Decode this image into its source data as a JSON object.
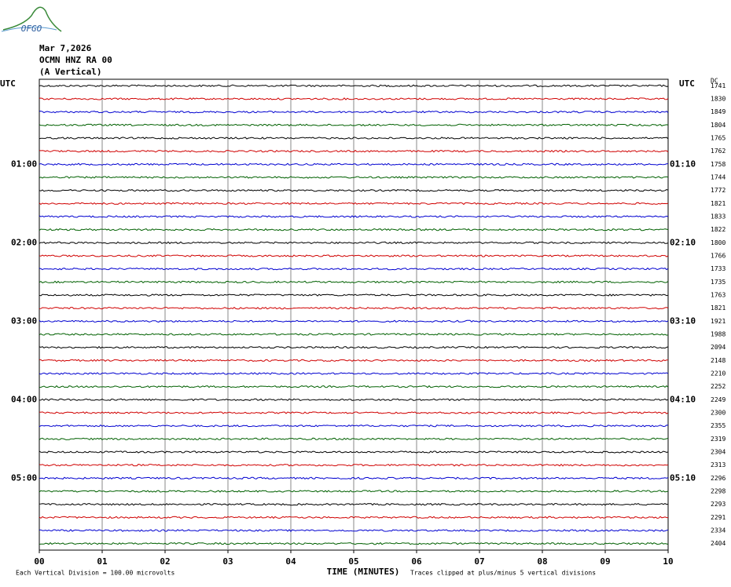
{
  "logo": "OFGO",
  "header": {
    "date": "Mar 7,2026",
    "station": "OCMN HNZ RA 00",
    "component": "(A Vertical)"
  },
  "left_axis": {
    "title": "UTC",
    "labels": [
      "01:00",
      "02:00",
      "03:00",
      "04:00",
      "05:00"
    ]
  },
  "right_axis": {
    "title": "UTC",
    "labels": [
      "01:10",
      "02:10",
      "03:10",
      "04:10",
      "05:10"
    ]
  },
  "dc": {
    "title": "DC",
    "values": [
      1741,
      1830,
      1849,
      1804,
      1765,
      1762,
      1758,
      1744,
      1772,
      1821,
      1833,
      1822,
      1800,
      1766,
      1733,
      1735,
      1763,
      1821,
      1921,
      1988,
      2094,
      2148,
      2210,
      2252,
      2249,
      2300,
      2355,
      2319,
      2304,
      2313,
      2296,
      2298,
      2293,
      2291,
      2334,
      2404
    ]
  },
  "trace_colors": [
    "#000000",
    "#d00000",
    "#0000d0",
    "#006000"
  ],
  "x_axis": {
    "ticks": [
      "00",
      "01",
      "02",
      "03",
      "04",
      "05",
      "06",
      "07",
      "08",
      "09",
      "10"
    ],
    "title": "TIME (MINUTES)"
  },
  "footer": {
    "scale_note": "Each Vertical Division =  100.00 microvolts",
    "clip_note": "Traces clipped at plus/minus 5 vertical divisions"
  }
}
